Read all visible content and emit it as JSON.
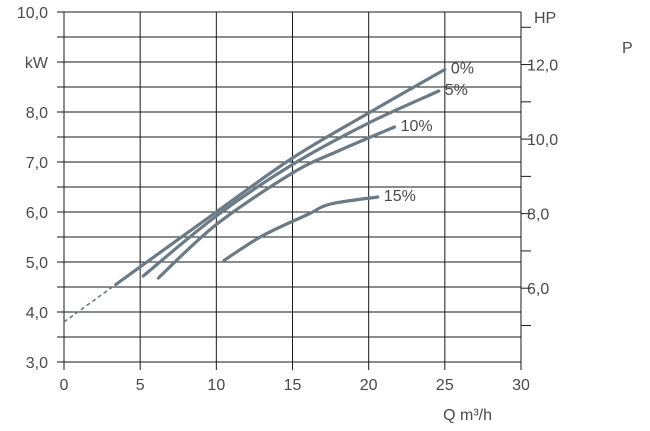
{
  "chart_data": {
    "type": "line",
    "title": "",
    "corner_label": "P",
    "xlabel": "Q m³/h",
    "ylabel_left": "kW",
    "ylabel_right": "HP",
    "xlim": [
      0,
      30
    ],
    "ylim_left": [
      3,
      10
    ],
    "ylim_right": [
      4.02,
      13.41
    ],
    "grid": true,
    "x_ticks": [
      "0",
      "5",
      "10",
      "15",
      "20",
      "25",
      "30"
    ],
    "y_ticks_left": [
      "3,0",
      "4,0",
      "5,0",
      "6,0",
      "7,0",
      "8,0",
      "10,0"
    ],
    "y_ticks_right": [
      "6,0",
      "8,0",
      "10,0",
      "12,0"
    ],
    "series": [
      {
        "name": "0%",
        "x": [
          3.4,
          10,
          15,
          20,
          25
        ],
        "y": [
          4.55,
          6.0,
          7.08,
          7.98,
          8.85
        ]
      },
      {
        "name": "5%",
        "x": [
          5.2,
          10,
          15,
          20,
          24.6
        ],
        "y": [
          4.72,
          5.92,
          6.95,
          7.78,
          8.42
        ]
      },
      {
        "name": "10%",
        "x": [
          6.2,
          10,
          15,
          18,
          21.7
        ],
        "y": [
          4.68,
          5.75,
          6.78,
          7.22,
          7.7
        ]
      },
      {
        "name": "15%",
        "x": [
          10.5,
          13,
          16,
          17.5,
          20.6
        ],
        "y": [
          5.03,
          5.52,
          5.95,
          6.16,
          6.3
        ]
      }
    ],
    "extrapolation": {
      "x": [
        0,
        3.4
      ],
      "y": [
        3.8,
        4.55
      ]
    }
  }
}
